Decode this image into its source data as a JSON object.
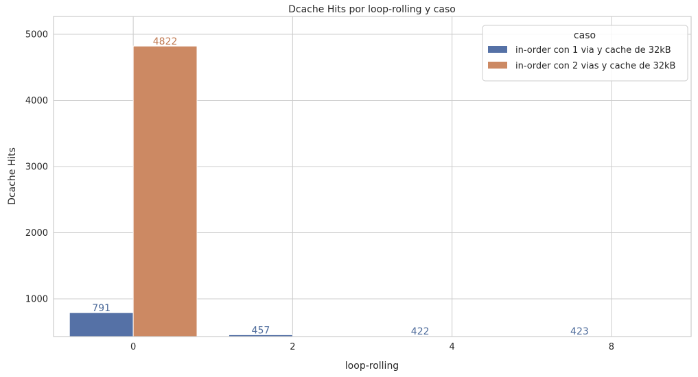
{
  "chart_data": {
    "type": "bar",
    "title": "Dcache Hits por loop-rolling y caso",
    "xlabel": "loop-rolling",
    "ylabel": "Dcache Hits",
    "categories": [
      "0",
      "2",
      "4",
      "8"
    ],
    "ylim": [
      430,
      5270
    ],
    "yticks": [
      1000,
      2000,
      3000,
      4000,
      5000
    ],
    "grid": true,
    "legend": {
      "title": "caso",
      "placement": "top-right"
    },
    "series": [
      {
        "name": "in-order con 1 via y cache de 32kB",
        "color": "#5571a6",
        "label_color": "#4c6a9a",
        "values": [
          791,
          457,
          422,
          423
        ],
        "data_labels": [
          "791",
          "457",
          "422",
          "423"
        ]
      },
      {
        "name": "in-order con 2 vias y cache de 32kB",
        "color": "#cc8963",
        "label_color": "#c07a52",
        "values": [
          4822,
          null,
          null,
          null
        ],
        "data_labels": [
          "4822",
          "",
          "",
          ""
        ]
      }
    ]
  }
}
